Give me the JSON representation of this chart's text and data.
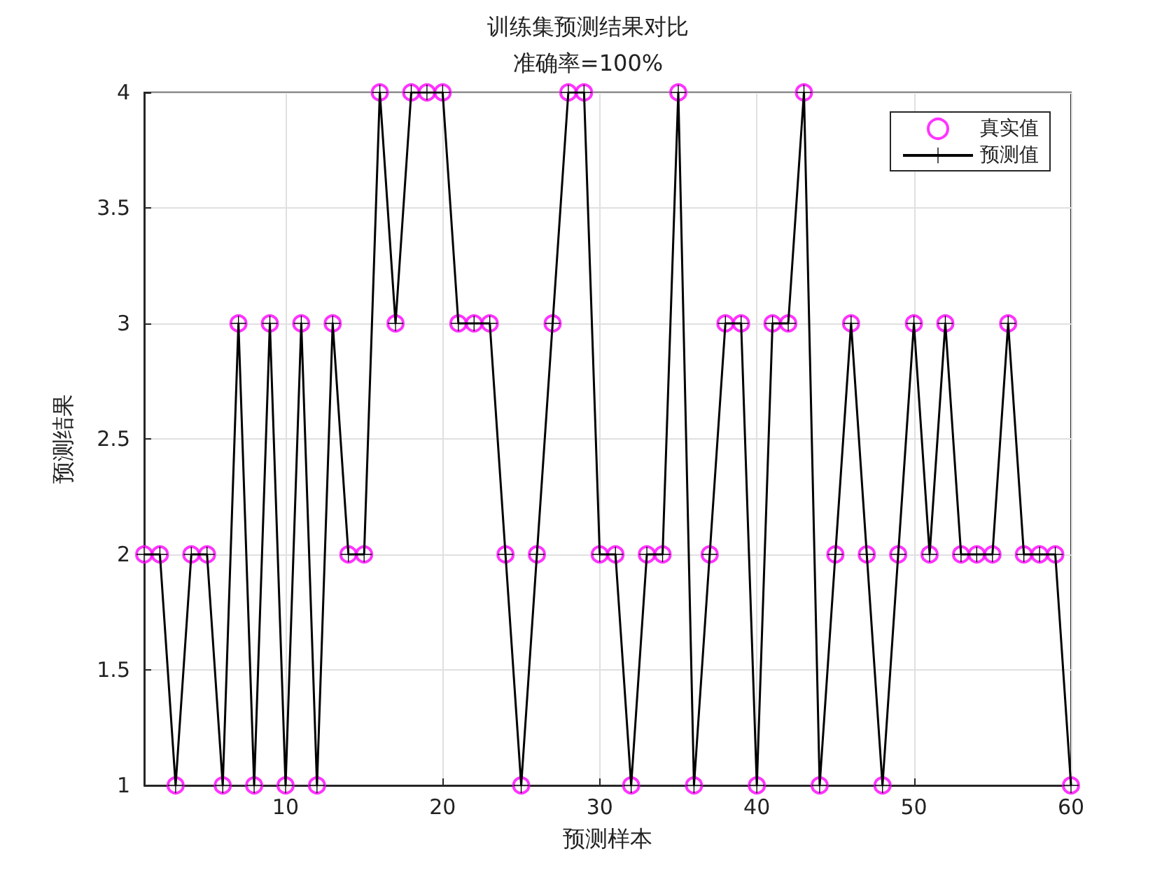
{
  "chart_data": {
    "type": "line",
    "title": "训练集预测结果对比",
    "subtitle": "准确率=100%",
    "xlabel": "预测样本",
    "ylabel": "预测结果",
    "x": [
      1,
      2,
      3,
      4,
      5,
      6,
      7,
      8,
      9,
      10,
      11,
      12,
      13,
      14,
      15,
      16,
      17,
      18,
      19,
      20,
      21,
      22,
      23,
      24,
      25,
      26,
      27,
      28,
      29,
      30,
      31,
      32,
      33,
      34,
      35,
      36,
      37,
      38,
      39,
      40,
      41,
      42,
      43,
      44,
      45,
      46,
      47,
      48,
      49,
      50,
      51,
      52,
      53,
      54,
      55,
      56,
      57,
      58,
      59,
      60
    ],
    "series": [
      {
        "name": "真实值",
        "type": "scatter",
        "marker": "circle",
        "color": "#ff00ff",
        "values": [
          2,
          2,
          1,
          2,
          2,
          1,
          3,
          1,
          3,
          1,
          3,
          1,
          3,
          2,
          2,
          4,
          3,
          4,
          4,
          4,
          3,
          3,
          3,
          2,
          1,
          2,
          3,
          4,
          4,
          2,
          2,
          1,
          2,
          2,
          4,
          1,
          2,
          3,
          3,
          1,
          3,
          3,
          4,
          1,
          2,
          3,
          2,
          1,
          2,
          3,
          2,
          3,
          2,
          2,
          2,
          3,
          2,
          2,
          2,
          1
        ]
      },
      {
        "name": "预测值",
        "marker": "cross",
        "line_style": "solid",
        "color": "#000000",
        "values": [
          2,
          2,
          1,
          2,
          2,
          1,
          3,
          1,
          3,
          1,
          3,
          1,
          3,
          2,
          2,
          4,
          3,
          4,
          4,
          4,
          3,
          3,
          3,
          2,
          1,
          2,
          3,
          4,
          4,
          2,
          2,
          1,
          2,
          2,
          4,
          1,
          2,
          3,
          3,
          1,
          3,
          3,
          4,
          1,
          2,
          3,
          2,
          1,
          2,
          3,
          2,
          3,
          2,
          2,
          2,
          3,
          2,
          2,
          2,
          1
        ]
      }
    ],
    "xlim": [
      1,
      60
    ],
    "xticks": [
      10,
      20,
      30,
      40,
      50,
      60
    ],
    "ylim": [
      1,
      4
    ],
    "yticks": [
      1,
      1.5,
      2,
      2.5,
      3,
      3.5,
      4
    ],
    "grid": true,
    "legend": "top right"
  }
}
